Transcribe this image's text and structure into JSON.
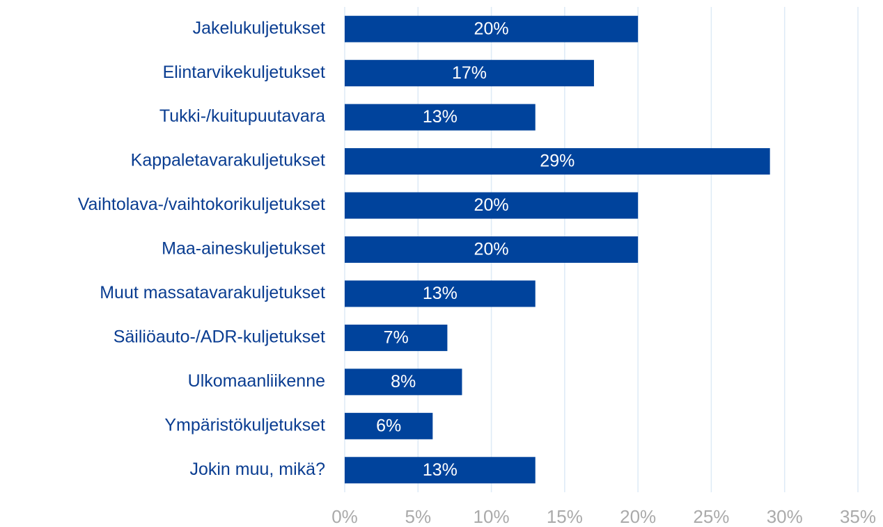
{
  "chart_data": {
    "type": "bar",
    "orientation": "horizontal",
    "categories": [
      "Jakelukuljetukset",
      "Elintarvikekuljetukset",
      "Tukki-/kuitupuutavara",
      "Kappaletavarakuljetukset",
      "Vaihtolava-/vaihtokorikuljetukset",
      "Maa-aineskuljetukset",
      "Muut massatavarakuljetukset",
      "Säiliöauto-/ADR-kuljetukset",
      "Ulkomaanliikenne",
      "Ympäristökuljetukset",
      "Jokin muu, mikä?"
    ],
    "values": [
      20,
      17,
      13,
      29,
      20,
      20,
      13,
      7,
      8,
      6,
      13
    ],
    "value_labels": [
      "20%",
      "17%",
      "13%",
      "29%",
      "20%",
      "20%",
      "13%",
      "7%",
      "8%",
      "6%",
      "13%"
    ],
    "color": "#00439c",
    "xlim": [
      0,
      35
    ],
    "xticks": [
      {
        "value": 0,
        "label": "0%"
      },
      {
        "value": 5,
        "label": "5%"
      },
      {
        "value": 10,
        "label": "10%"
      },
      {
        "value": 15,
        "label": "15%"
      },
      {
        "value": 20,
        "label": "20%"
      },
      {
        "value": 25,
        "label": "25%"
      },
      {
        "value": 30,
        "label": "30%"
      },
      {
        "value": 35,
        "label": "35%"
      }
    ],
    "grid": true
  }
}
